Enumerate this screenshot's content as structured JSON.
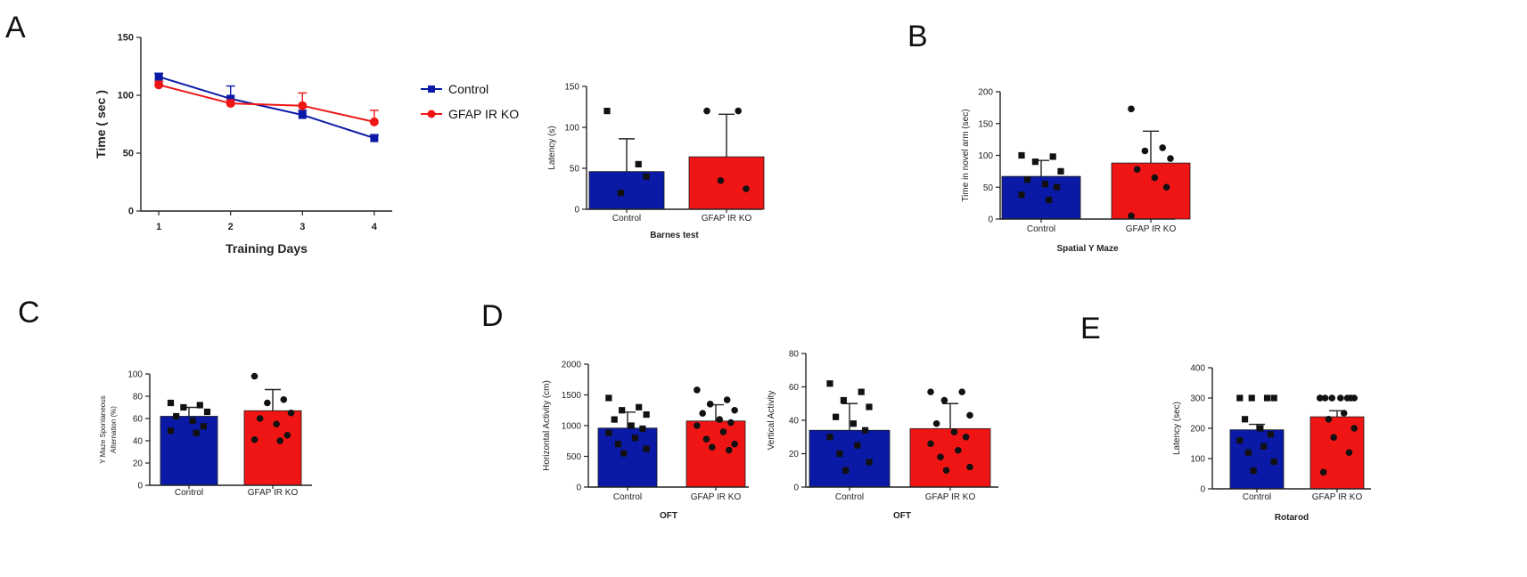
{
  "colors": {
    "control": "#0a1aa6",
    "ko": "#f01515",
    "axis": "#222222",
    "points": "#111111"
  },
  "panel_letters": [
    "A",
    "B",
    "C",
    "D",
    "E"
  ],
  "legend": {
    "entries": [
      "Control",
      "GFAP IR KO"
    ]
  },
  "chart_data": [
    {
      "id": "a-line",
      "type": "line",
      "panel": "A",
      "title": "",
      "xlabel": "Training Days",
      "ylabel": "Time ( sec )",
      "x": [
        1,
        2,
        3,
        4
      ],
      "xticks": [
        "1",
        "2",
        "3",
        "4"
      ],
      "xlim": [
        0.75,
        4.25
      ],
      "ylim": [
        0,
        150
      ],
      "yticks": [
        0,
        50,
        100,
        150
      ],
      "series": [
        {
          "name": "Control",
          "values": [
            116,
            97,
            83,
            63
          ],
          "err": [
            3,
            11,
            4,
            3
          ],
          "marker": "square"
        },
        {
          "name": "GFAP IR KO",
          "values": [
            109,
            93,
            91,
            77
          ],
          "err": [
            3,
            3,
            11,
            10
          ],
          "marker": "circle"
        }
      ]
    },
    {
      "id": "a-bar",
      "type": "bar",
      "panel": "A",
      "title": "",
      "xlabel": "Barnes test",
      "ylabel": "Latency (s)",
      "categories": [
        "Control",
        "GFAP IR KO"
      ],
      "values": [
        46,
        64
      ],
      "err": [
        40,
        52
      ],
      "points": [
        [
          120,
          55,
          20,
          40
        ],
        [
          120,
          120,
          35,
          25
        ]
      ],
      "point_marker": [
        "square",
        "circle"
      ],
      "ylim": [
        0,
        150
      ],
      "yticks": [
        0,
        50,
        100,
        150
      ]
    },
    {
      "id": "b-bar",
      "type": "bar",
      "panel": "B",
      "title": "",
      "xlabel": "Spatial Y Maze",
      "ylabel": "Time in novel arm (sec)",
      "categories": [
        "Control",
        "GFAP IR KO"
      ],
      "values": [
        67,
        88
      ],
      "err": [
        25,
        50
      ],
      "points": [
        [
          100,
          98,
          90,
          75,
          62,
          55,
          50,
          38,
          30
        ],
        [
          173,
          112,
          107,
          95,
          78,
          65,
          50,
          5
        ]
      ],
      "point_marker": [
        "square",
        "circle"
      ],
      "ylim": [
        0,
        200
      ],
      "yticks": [
        0,
        50,
        100,
        150,
        200
      ]
    },
    {
      "id": "c-bar",
      "type": "bar",
      "panel": "C",
      "title": "",
      "xlabel": "",
      "ylabel": "Y Maze Spontaneous Alternation (%)",
      "categories": [
        "Control",
        "GFAP IR KO"
      ],
      "values": [
        62,
        67
      ],
      "err": [
        8,
        19
      ],
      "points": [
        [
          74,
          72,
          70,
          66,
          62,
          58,
          53,
          49,
          47
        ],
        [
          98,
          77,
          74,
          65,
          60,
          55,
          45,
          41,
          40
        ]
      ],
      "point_marker": [
        "square",
        "circle"
      ],
      "ylim": [
        0,
        100
      ],
      "yticks": [
        0,
        20,
        40,
        60,
        80,
        100
      ]
    },
    {
      "id": "d-bar-horizontal",
      "type": "bar",
      "panel": "D",
      "title": "",
      "xlabel": "OFT",
      "ylabel": "Horizontal Activity (cm)",
      "categories": [
        "Control",
        "GFAP IR KO"
      ],
      "values": [
        960,
        1075
      ],
      "err": [
        260,
        265
      ],
      "points": [
        [
          1450,
          1300,
          1250,
          1180,
          1100,
          1000,
          950,
          880,
          800,
          700,
          620,
          550
        ],
        [
          1580,
          1420,
          1350,
          1250,
          1200,
          1100,
          1050,
          1000,
          900,
          780,
          700,
          650,
          600
        ]
      ],
      "point_marker": [
        "square",
        "circle"
      ],
      "ylim": [
        0,
        2000
      ],
      "yticks": [
        0,
        500,
        1000,
        1500,
        2000
      ]
    },
    {
      "id": "d-bar-vertical",
      "type": "bar",
      "panel": "D",
      "title": "",
      "xlabel": "OFT",
      "ylabel": "Vertical Activity",
      "categories": [
        "Control",
        "GFAP IR KO"
      ],
      "values": [
        34,
        35
      ],
      "err": [
        16,
        15
      ],
      "points": [
        [
          62,
          57,
          52,
          48,
          42,
          38,
          34,
          30,
          25,
          20,
          15,
          10
        ],
        [
          57,
          57,
          52,
          43,
          38,
          33,
          30,
          26,
          22,
          18,
          12,
          10
        ]
      ],
      "point_marker": [
        "square",
        "circle"
      ],
      "ylim": [
        0,
        80
      ],
      "yticks": [
        0,
        20,
        40,
        60,
        80
      ]
    },
    {
      "id": "e-bar",
      "type": "bar",
      "panel": "E",
      "title": "",
      "xlabel": "Rotarod",
      "ylabel": "Latency (sec)",
      "categories": [
        "Control",
        "GFAP IR KO"
      ],
      "values": [
        195,
        238
      ],
      "err": [
        18,
        20
      ],
      "points": [
        [
          300,
          300,
          300,
          300,
          230,
          200,
          180,
          160,
          140,
          120,
          90,
          60
        ],
        [
          300,
          300,
          300,
          300,
          300,
          300,
          300,
          300,
          250,
          230,
          200,
          170,
          120,
          55
        ]
      ],
      "point_marker": [
        "square",
        "circle"
      ],
      "ylim": [
        0,
        400
      ],
      "yticks": [
        0,
        100,
        200,
        300,
        400
      ]
    }
  ]
}
